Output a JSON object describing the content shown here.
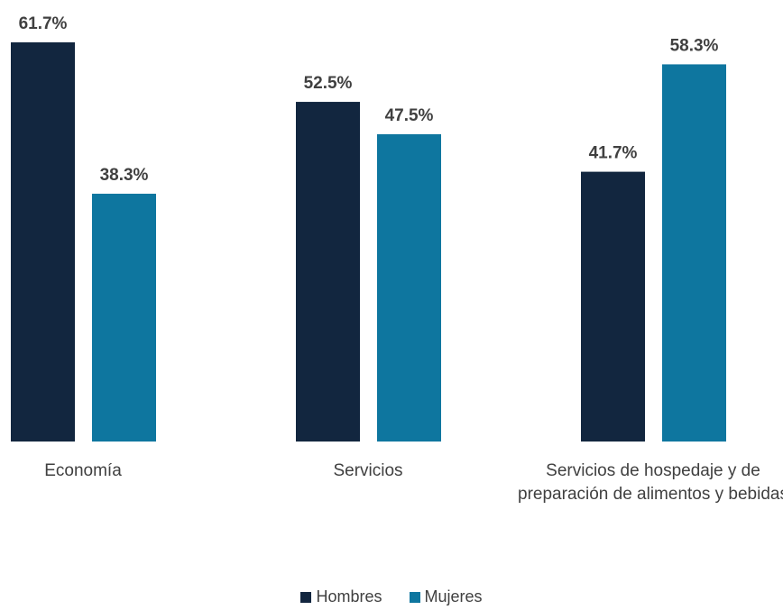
{
  "chart_data": {
    "type": "bar",
    "categories": [
      "Economía",
      "Servicios",
      "Servicios de hospedaje y de preparación de alimentos y bebidas"
    ],
    "series": [
      {
        "name": "Hombres",
        "values": [
          61.7,
          52.5,
          41.7
        ],
        "labels": [
          "61.7%",
          "52.5%",
          "41.7%"
        ],
        "color": "#12263f"
      },
      {
        "name": "Mujeres",
        "values": [
          38.3,
          47.5,
          58.3
        ],
        "labels": [
          "38.3%",
          "47.5%",
          "58.3%"
        ],
        "color": "#0e769f"
      }
    ],
    "ylim": [
      0,
      61.7
    ],
    "grid": false,
    "legend": "bottom-center"
  }
}
